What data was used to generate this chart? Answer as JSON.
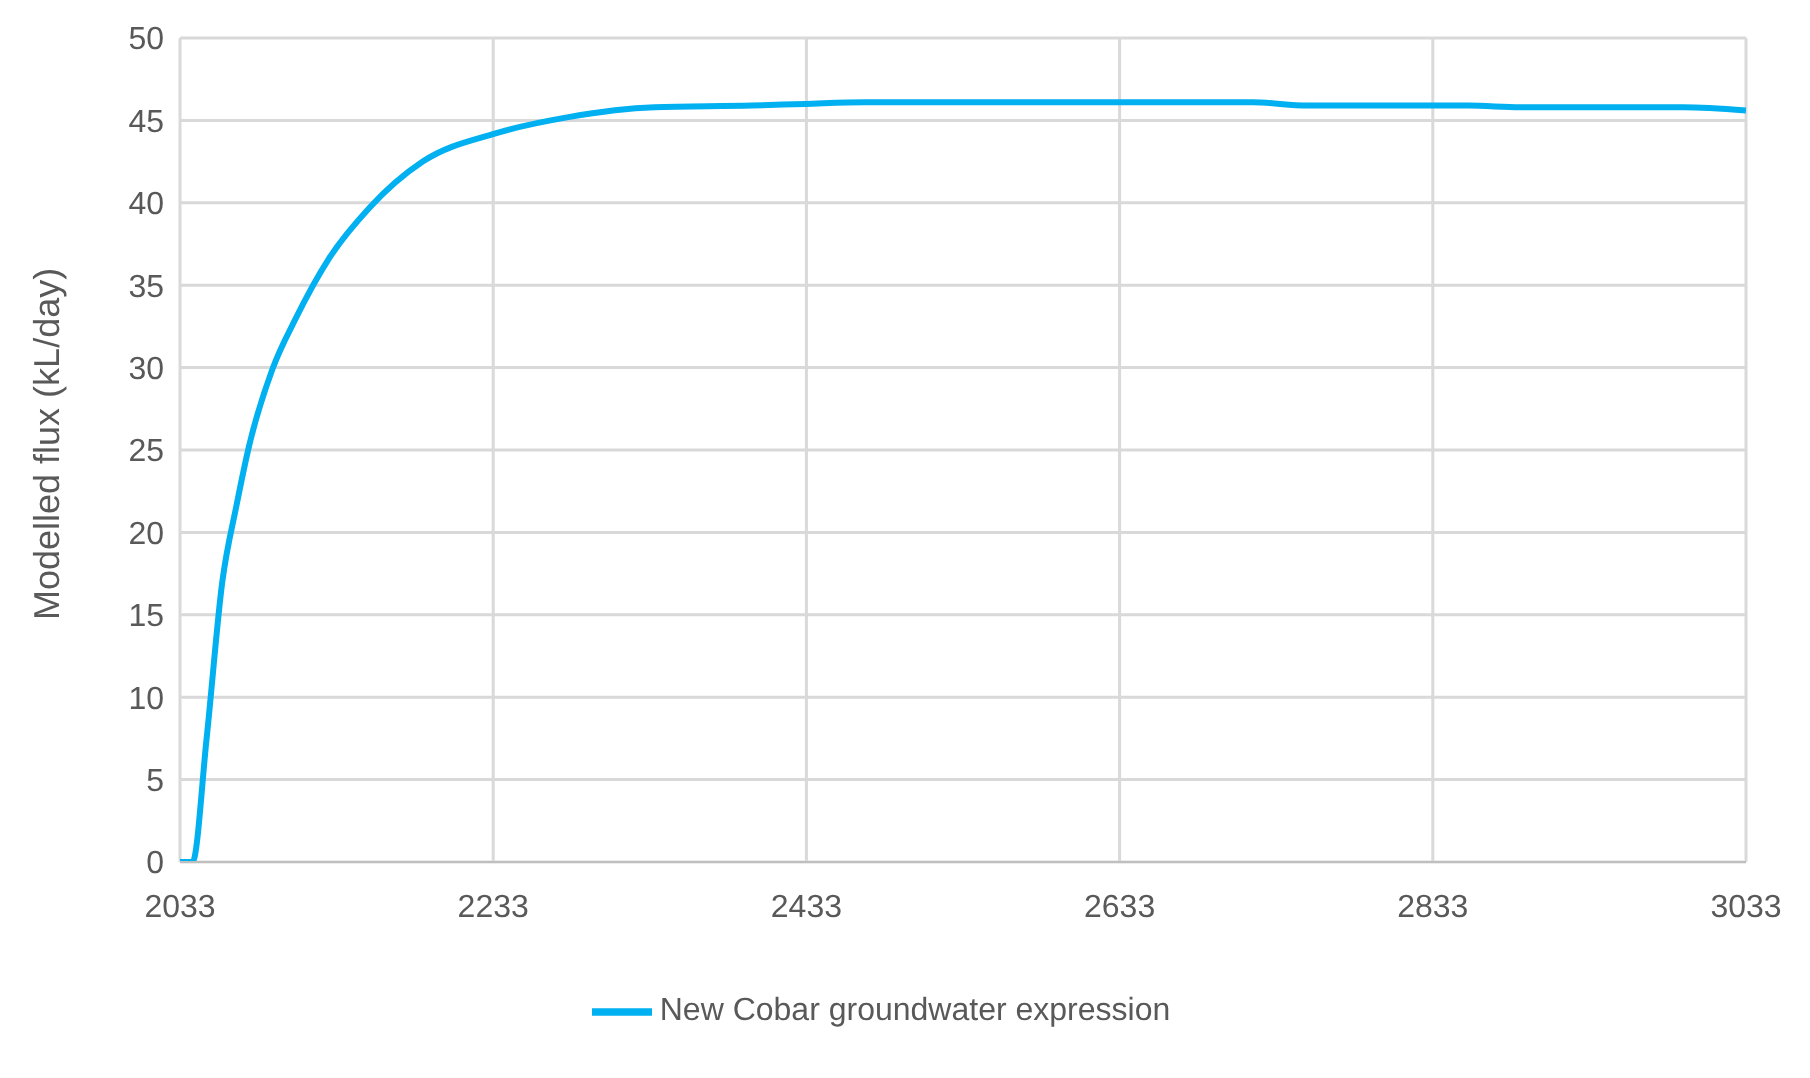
{
  "chart_data": {
    "type": "line",
    "ylabel": "Modelled flux (kL/day)",
    "xlim": [
      2033,
      3033
    ],
    "xticks": [
      2033,
      2233,
      2433,
      2633,
      2833,
      3033
    ],
    "ylim": [
      0,
      50
    ],
    "yticks": [
      0,
      5,
      10,
      15,
      20,
      25,
      30,
      35,
      40,
      45,
      50
    ],
    "grid": true,
    "legend": "bottom",
    "marker": "none",
    "line_style": "solid",
    "series": [
      {
        "name": "New Cobar groundwater expression",
        "color": "#00b0f0",
        "x": [
          2033,
          2041,
          2050,
          2060,
          2069,
          2077,
          2092,
          2107,
          2128,
          2154,
          2188,
          2234,
          2281,
          2336,
          2398,
          2432,
          2470,
          2718,
          2753,
          2856,
          2889,
          2993,
          3033
        ],
        "values": [
          0,
          0,
          7.5,
          17,
          21.6,
          25.2,
          29.9,
          33,
          36.6,
          39.7,
          42.5,
          44.2,
          45.2,
          45.8,
          45.9,
          46,
          46.1,
          46.1,
          45.9,
          45.9,
          45.8,
          45.8,
          45.6
        ]
      }
    ]
  }
}
